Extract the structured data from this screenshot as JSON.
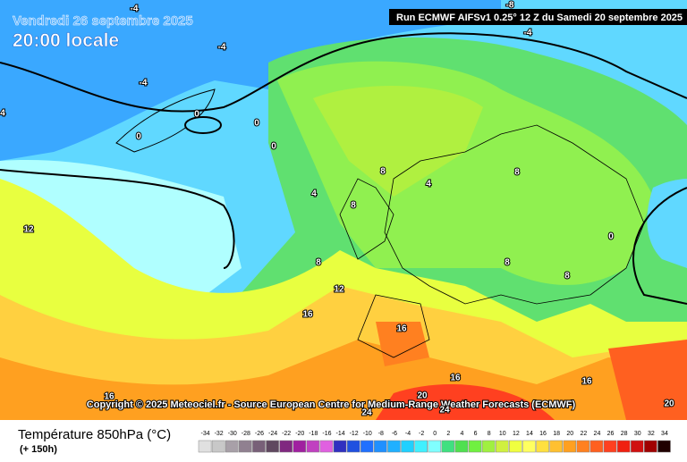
{
  "header": {
    "date": "Vendredi 26 septembre 2025",
    "local_time": "20:00 locale",
    "run": "Run ECMWF AIFSv1 0.25° 12 Z du Samedi 20 septembre 2025"
  },
  "copyright": "Copyright © 2025 Meteociel.fr - Source European Centre for Medium-Range Weather Forecasts (ECMWF)",
  "contour_labels": [
    "-8",
    "-4",
    "-4",
    "-4",
    "-4",
    "4",
    "0",
    "0",
    "0",
    "0",
    "0",
    "4",
    "4",
    "8",
    "8",
    "8",
    "8",
    "8",
    "8",
    "12",
    "12",
    "16",
    "16",
    "16",
    "16",
    "16",
    "20",
    "20",
    "24",
    "24"
  ],
  "legend": {
    "title": "Température 850hPa (°C)",
    "subtitle": "(+ 150h)",
    "scale": [
      -34,
      -32,
      -30,
      -28,
      -26,
      -24,
      -22,
      -20,
      -18,
      -16,
      -14,
      -12,
      -10,
      -8,
      -6,
      -4,
      -2,
      0,
      2,
      4,
      6,
      8,
      10,
      12,
      14,
      16,
      18,
      20,
      22,
      24,
      26,
      28,
      30,
      32,
      34
    ],
    "colors": [
      "#e0e0e0",
      "#c8c8c8",
      "#a8a0a8",
      "#908090",
      "#786078",
      "#604860",
      "#802880",
      "#a020a0",
      "#c040c0",
      "#e060e0",
      "#3030c0",
      "#2050e0",
      "#2070ff",
      "#2090ff",
      "#20b0ff",
      "#20d0ff",
      "#40f0ff",
      "#80ffff",
      "#40e080",
      "#50e050",
      "#70f040",
      "#a0f040",
      "#d0f040",
      "#f0ff40",
      "#ffff60",
      "#ffe040",
      "#ffc030",
      "#ffa020",
      "#ff8020",
      "#ff6020",
      "#ff4020",
      "#f02010",
      "#d01010",
      "#a00000",
      "#200000"
    ]
  }
}
